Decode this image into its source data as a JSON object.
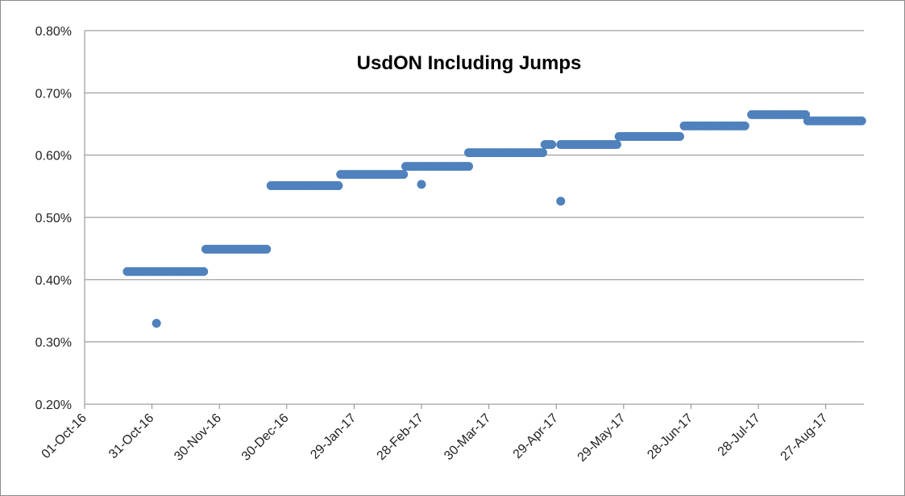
{
  "chart_data": {
    "type": "scatter",
    "title": "UsdON Including Jumps",
    "xlabel": "",
    "ylabel": "",
    "x_axis": "date",
    "xlim": [
      "2016-10-01",
      "2017-09-13"
    ],
    "ylim": [
      0.2,
      0.8
    ],
    "y_unit": "percent",
    "x_ticks": [
      "2016-10-01",
      "2016-10-31",
      "2016-11-30",
      "2016-12-30",
      "2017-01-29",
      "2017-02-28",
      "2017-03-30",
      "2017-04-29",
      "2017-05-29",
      "2017-06-28",
      "2017-07-28",
      "2017-08-27"
    ],
    "x_tick_labels": [
      "01-Oct-16",
      "31-Oct-16",
      "30-Nov-16",
      "30-Dec-16",
      "29-Jan-17",
      "28-Feb-17",
      "30-Mar-17",
      "29-Apr-17",
      "29-May-17",
      "28-Jun-17",
      "28-Jul-17",
      "27-Aug-17"
    ],
    "y_ticks": [
      0.2,
      0.3,
      0.4,
      0.5,
      0.6,
      0.7,
      0.8
    ],
    "y_tick_labels": [
      "0.20%",
      "0.30%",
      "0.40%",
      "0.50%",
      "0.60%",
      "0.70%",
      "0.80%"
    ],
    "grid": true,
    "legend": "none",
    "marker_color": "#4f81bd",
    "steps": [
      {
        "start": "2016-10-20",
        "end": "2016-11-23",
        "value": 0.413
      },
      {
        "start": "2016-11-24",
        "end": "2016-12-21",
        "value": 0.449
      },
      {
        "start": "2016-12-23",
        "end": "2017-01-22",
        "value": 0.551
      },
      {
        "start": "2017-01-23",
        "end": "2017-02-20",
        "value": 0.569
      },
      {
        "start": "2017-02-21",
        "end": "2017-03-21",
        "value": 0.582
      },
      {
        "start": "2017-03-21",
        "end": "2017-04-23",
        "value": 0.604
      },
      {
        "start": "2017-04-24",
        "end": "2017-04-27",
        "value": 0.617
      },
      {
        "start": "2017-05-01",
        "end": "2017-05-26",
        "value": 0.617
      },
      {
        "start": "2017-05-27",
        "end": "2017-06-23",
        "value": 0.63
      },
      {
        "start": "2017-06-25",
        "end": "2017-07-22",
        "value": 0.647
      },
      {
        "start": "2017-07-25",
        "end": "2017-08-18",
        "value": 0.665
      },
      {
        "start": "2017-08-19",
        "end": "2017-09-12",
        "value": 0.655
      }
    ],
    "outliers": [
      {
        "x": "2016-11-02",
        "y": 0.33
      },
      {
        "x": "2017-02-28",
        "y": 0.553
      },
      {
        "x": "2017-05-01",
        "y": 0.526
      }
    ]
  }
}
